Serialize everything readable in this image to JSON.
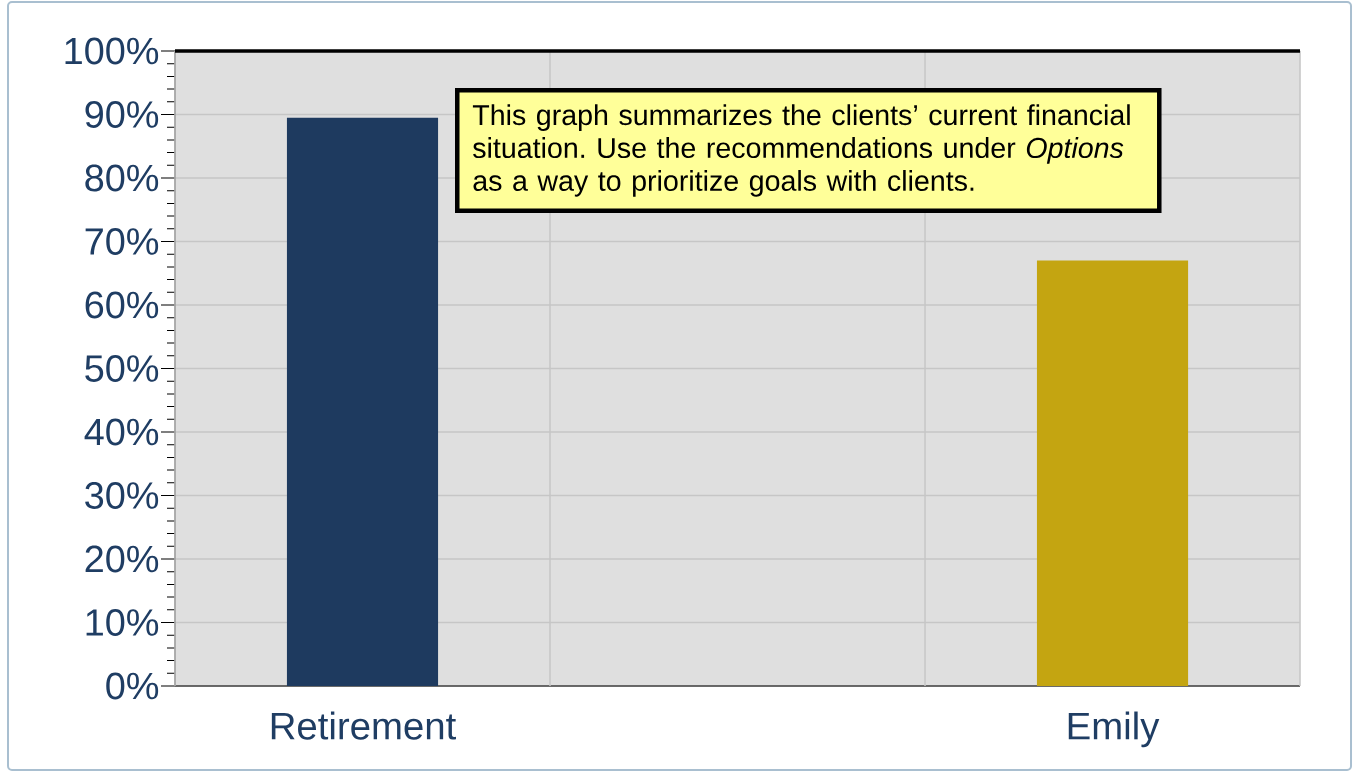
{
  "chart_data": {
    "type": "bar",
    "categories": [
      "Retirement",
      null,
      "Emily"
    ],
    "values": [
      89.5,
      null,
      67
    ],
    "colors": [
      "#1e3a5f",
      null,
      "#c4a511"
    ],
    "ylim": [
      0,
      100
    ],
    "yticks": [
      {
        "value": 0,
        "label": "0%"
      },
      {
        "value": 10,
        "label": "10%"
      },
      {
        "value": 20,
        "label": "20%"
      },
      {
        "value": 30,
        "label": "30%"
      },
      {
        "value": 40,
        "label": "40%"
      },
      {
        "value": 50,
        "label": "50%"
      },
      {
        "value": 60,
        "label": "60%"
      },
      {
        "value": 70,
        "label": "70%"
      },
      {
        "value": 80,
        "label": "80%"
      },
      {
        "value": 90,
        "label": "90%"
      },
      {
        "value": 100,
        "label": "100%"
      }
    ],
    "grid": true,
    "annotations": [
      "This graph summarizes the clients’ current financial situation. Use the recommendations under *Options* as a way to prioritize goals with clients."
    ]
  }
}
